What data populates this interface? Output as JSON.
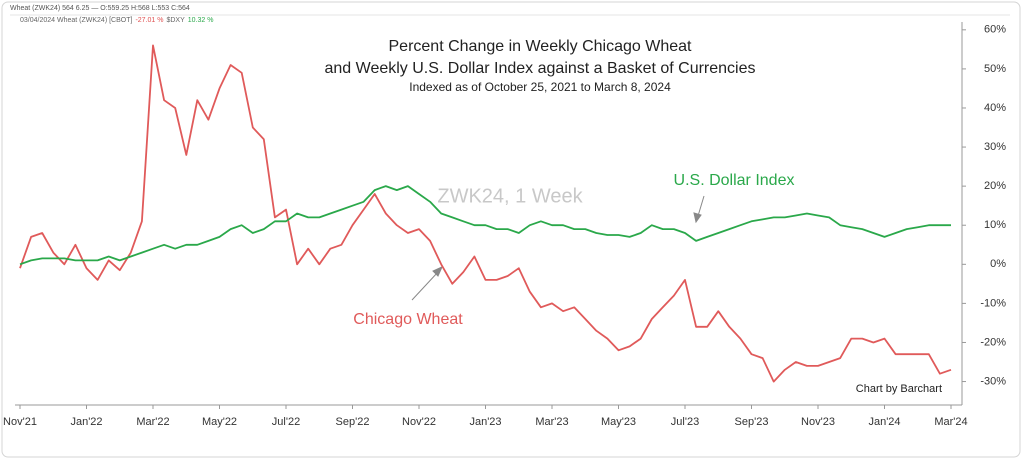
{
  "chart_data": {
    "type": "line",
    "header": "Wheat (ZWK24) 564 6.25 — O:559.25 H:568 L:553 C:564",
    "legend_line": [
      {
        "text": "03/04/2024 Wheat (ZWK24) [CBOT]",
        "color": "#666666"
      },
      {
        "text": "-27.01 %",
        "color": "#e05050"
      },
      {
        "text": "$DXY",
        "color": "#666666"
      },
      {
        "text": "10.32 %",
        "color": "#2aa84a"
      }
    ],
    "title": [
      "Percent Change in Weekly Chicago Wheat",
      "and Weekly U.S. Dollar Index against a Basket of Currencies"
    ],
    "subtitle": "Indexed as of October 25, 2021 to March 8, 2024",
    "watermark": "ZWK24, 1 Week",
    "credit": "Chart by Barchart",
    "categories": [
      "Nov'21",
      null,
      null,
      null,
      null,
      null,
      "Jan'22",
      null,
      null,
      null,
      null,
      null,
      "Mar'22",
      null,
      null,
      null,
      null,
      null,
      "May'22",
      null,
      null,
      null,
      null,
      null,
      "Jul'22",
      null,
      null,
      null,
      null,
      null,
      "Sep'22",
      null,
      null,
      null,
      null,
      null,
      "Nov'22",
      null,
      null,
      null,
      null,
      null,
      "Jan'23",
      null,
      null,
      null,
      null,
      null,
      "Mar'23",
      null,
      null,
      null,
      null,
      null,
      "May'23",
      null,
      null,
      null,
      null,
      null,
      "Jul'23",
      null,
      null,
      null,
      null,
      null,
      "Sep'23",
      null,
      null,
      null,
      null,
      null,
      "Nov'23",
      null,
      null,
      null,
      null,
      null,
      "Jan'24",
      null,
      null,
      null,
      null,
      null,
      "Mar'24"
    ],
    "series": [
      {
        "name": "Chicago Wheat",
        "color": "#e05a5a",
        "values": [
          -1,
          7,
          8,
          3,
          0,
          5,
          -1,
          -4,
          1,
          -1.5,
          3,
          11,
          56,
          42,
          40,
          28,
          42,
          37,
          45,
          51,
          49,
          35,
          32,
          12,
          14,
          0,
          4,
          0,
          4,
          5,
          10,
          14,
          18,
          13,
          10,
          8,
          9,
          6,
          0,
          -5,
          -2,
          2,
          -4,
          -4,
          -3,
          -1,
          -7,
          -11,
          -10,
          -12,
          -11,
          -14,
          -17,
          -19,
          -22,
          -21,
          -19,
          -14,
          -11,
          -8,
          -4,
          -16,
          -16,
          -12,
          -16,
          -19,
          -23,
          -24,
          -30,
          -27,
          -25,
          -26,
          -26,
          -25,
          -24,
          -19,
          -19,
          -20,
          -19,
          -23,
          -23,
          -23,
          -23,
          -28,
          -27
        ]
      },
      {
        "name": "U.S. Dollar Index",
        "color": "#2aa84a",
        "values": [
          0,
          1,
          1.5,
          1.5,
          1.5,
          1,
          1,
          1,
          2,
          1,
          2,
          3,
          4,
          5,
          4,
          5,
          5,
          6,
          7,
          9,
          10,
          8,
          9,
          11,
          11,
          13,
          12,
          12,
          13,
          14,
          15,
          16,
          19,
          20,
          19,
          20,
          18,
          16,
          13,
          12,
          11,
          10,
          10,
          9,
          9,
          8,
          10,
          11,
          10,
          10,
          9,
          9,
          8,
          7.5,
          7.5,
          7,
          8,
          10,
          9,
          9,
          8,
          6,
          7,
          8,
          9,
          10,
          11,
          11.5,
          12,
          12,
          12.5,
          13,
          12.5,
          12,
          10,
          9.5,
          9,
          8,
          7,
          8,
          9,
          9.5,
          10,
          10,
          10
        ]
      }
    ],
    "ylim": [
      -36,
      62
    ],
    "yticks": [
      {
        "value": 60,
        "label": "60%"
      },
      {
        "value": 50,
        "label": "50%"
      },
      {
        "value": 40,
        "label": "40%"
      },
      {
        "value": 30,
        "label": "30%"
      },
      {
        "value": 20,
        "label": "20%"
      },
      {
        "value": 10,
        "label": "10%"
      },
      {
        "value": 0,
        "label": "0%"
      },
      {
        "value": -10,
        "label": "-10%"
      },
      {
        "value": -20,
        "label": "-20%"
      },
      {
        "value": -30,
        "label": "-30%"
      }
    ],
    "grid": false
  }
}
